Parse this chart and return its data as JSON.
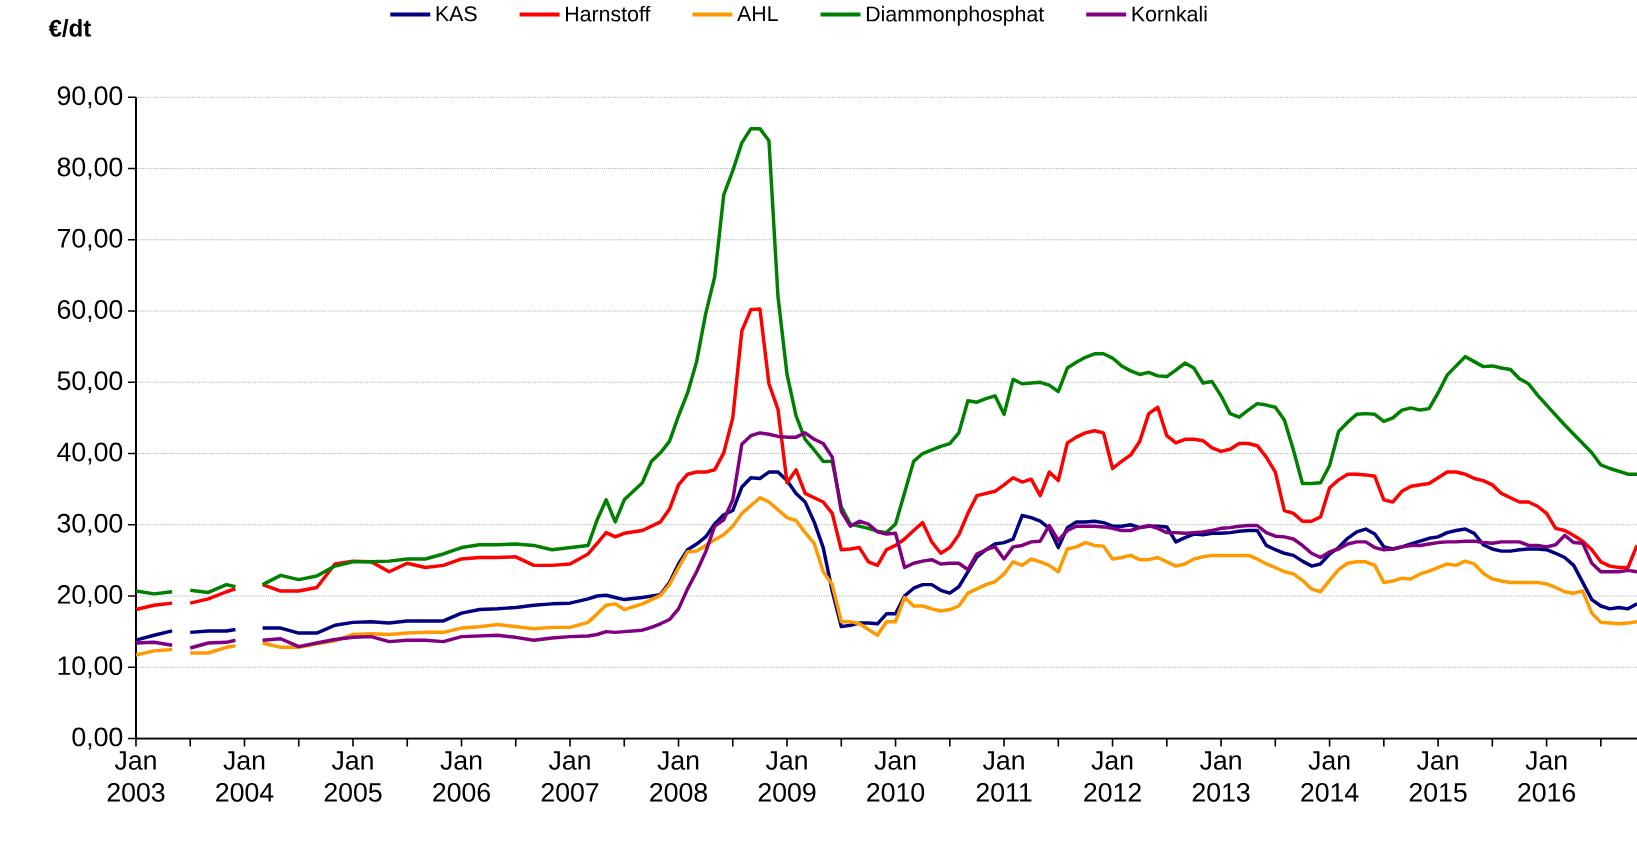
{
  "chart_data": {
    "type": "line",
    "ylabel": "€/dt",
    "x": [
      "2003-01",
      "2003-03",
      "2003-05",
      "2003-06",
      "2003-07",
      "2003-09",
      "2003-11",
      "2003-12",
      "2004-01",
      "2004-03",
      "2004-05",
      "2004-07",
      "2004-09",
      "2004-11",
      "2005-01",
      "2005-03",
      "2005-05",
      "2005-07",
      "2005-09",
      "2005-11",
      "2006-01",
      "2006-03",
      "2006-05",
      "2006-07",
      "2006-09",
      "2006-11",
      "2007-01",
      "2007-03",
      "2007-04",
      "2007-05",
      "2007-06",
      "2007-07",
      "2007-09",
      "2007-10",
      "2007-11",
      "2007-12",
      "2008-01",
      "2008-02",
      "2008-03",
      "2008-04",
      "2008-05",
      "2008-06",
      "2008-07",
      "2008-08",
      "2008-09",
      "2008-10",
      "2008-11",
      "2008-12",
      "2009-01",
      "2009-02",
      "2009-03",
      "2009-04",
      "2009-05",
      "2009-06",
      "2009-07",
      "2009-08",
      "2009-09",
      "2009-10",
      "2009-11",
      "2009-12",
      "2010-01",
      "2010-02",
      "2010-03",
      "2010-04",
      "2010-05",
      "2010-06",
      "2010-07",
      "2010-08",
      "2010-09",
      "2010-10",
      "2010-11",
      "2010-12",
      "2011-01",
      "2011-02",
      "2011-03",
      "2011-04",
      "2011-05",
      "2011-06",
      "2011-07",
      "2011-08",
      "2011-09",
      "2011-10",
      "2011-11",
      "2011-12",
      "2012-01",
      "2012-02",
      "2012-03",
      "2012-04",
      "2012-05",
      "2012-06",
      "2012-07",
      "2012-08",
      "2012-09",
      "2012-10",
      "2012-11",
      "2012-12",
      "2013-01",
      "2013-02",
      "2013-03",
      "2013-04",
      "2013-05",
      "2013-06",
      "2013-07",
      "2013-08",
      "2013-09",
      "2013-10",
      "2013-11",
      "2013-12",
      "2014-01",
      "2014-02",
      "2014-03",
      "2014-04",
      "2014-05",
      "2014-06",
      "2014-07",
      "2014-08",
      "2014-09",
      "2014-10",
      "2014-11",
      "2014-12",
      "2015-01",
      "2015-02",
      "2015-03",
      "2015-04",
      "2015-05",
      "2015-06",
      "2015-07",
      "2015-08",
      "2015-09",
      "2015-10",
      "2015-11",
      "2015-12",
      "2016-01",
      "2016-02",
      "2016-03",
      "2016-04",
      "2016-05",
      "2016-06",
      "2016-07",
      "2016-08",
      "2016-09",
      "2016-10",
      "2016-11"
    ],
    "series": [
      {
        "name": "KAS",
        "color": "#000080",
        "values": [
          13.8,
          14.5,
          15.1,
          null,
          14.9,
          15.1,
          15.1,
          15.3,
          null,
          15.5,
          15.5,
          14.8,
          14.8,
          15.9,
          16.3,
          16.4,
          16.2,
          16.5,
          16.5,
          16.5,
          17.6,
          18.1,
          18.2,
          18.4,
          18.7,
          18.9,
          19.0,
          19.6,
          20.0,
          20.1,
          19.8,
          19.5,
          19.8,
          20.0,
          20.2,
          21.9,
          24.5,
          26.5,
          27.3,
          28.3,
          30.1,
          31.4,
          32.0,
          35.3,
          36.6,
          36.5,
          37.4,
          37.4,
          36.2,
          34.4,
          33.2,
          30.4,
          26.8,
          20.7,
          15.7,
          15.9,
          16.2,
          16.2,
          16.1,
          17.5,
          17.5,
          20.0,
          21.1,
          21.6,
          21.6,
          20.8,
          20.4,
          21.3,
          23.4,
          25.5,
          26.5,
          27.3,
          27.5,
          28.0,
          31.3,
          31.0,
          30.5,
          29.5,
          26.8,
          29.6,
          30.4,
          30.4,
          30.5,
          30.3,
          29.8,
          29.8,
          30.0,
          29.6,
          29.8,
          29.8,
          29.7,
          27.6,
          28.2,
          28.7,
          28.6,
          28.8,
          28.8,
          28.9,
          29.1,
          29.2,
          29.2,
          27.1,
          26.5,
          26.0,
          25.7,
          24.9,
          24.2,
          24.5,
          25.9,
          26.8,
          28.1,
          29.0,
          29.4,
          28.7,
          26.9,
          26.6,
          26.9,
          27.3,
          27.7,
          28.1,
          28.3,
          28.9,
          29.2,
          29.4,
          28.8,
          27.2,
          26.6,
          26.3,
          26.3,
          26.5,
          26.6,
          26.6,
          26.5,
          26.0,
          25.4,
          24.3,
          21.9,
          19.5,
          18.6,
          18.2,
          18.4,
          18.2,
          18.9
        ]
      },
      {
        "name": "Harnstoff",
        "color": "#ff0000",
        "values": [
          18.1,
          18.7,
          19.0,
          null,
          19.0,
          19.6,
          20.6,
          21.0,
          null,
          21.6,
          20.7,
          20.7,
          21.2,
          24.5,
          24.9,
          24.8,
          23.4,
          24.6,
          24.0,
          24.3,
          25.2,
          25.4,
          25.4,
          25.5,
          24.3,
          24.3,
          24.5,
          25.9,
          27.4,
          28.9,
          28.3,
          28.8,
          29.2,
          29.8,
          30.4,
          32.2,
          35.6,
          37.1,
          37.4,
          37.4,
          37.7,
          40.1,
          45.0,
          57.2,
          60.2,
          60.3,
          49.8,
          46.2,
          35.9,
          37.7,
          34.4,
          33.8,
          33.2,
          31.6,
          26.5,
          26.6,
          26.8,
          24.8,
          24.3,
          26.5,
          27.1,
          28.0,
          29.2,
          30.3,
          27.6,
          26.0,
          26.8,
          28.6,
          31.6,
          34.1,
          34.4,
          34.7,
          35.6,
          36.6,
          36.0,
          36.4,
          34.1,
          37.4,
          36.2,
          41.5,
          42.3,
          42.9,
          43.2,
          42.9,
          37.9,
          38.9,
          39.8,
          41.7,
          45.6,
          46.5,
          42.5,
          41.5,
          42.0,
          42.0,
          41.8,
          40.8,
          40.3,
          40.6,
          41.4,
          41.4,
          41.1,
          39.5,
          37.4,
          32.0,
          31.6,
          30.5,
          30.5,
          31.1,
          35.2,
          36.3,
          37.1,
          37.1,
          37.0,
          36.8,
          33.5,
          33.2,
          34.7,
          35.4,
          35.6,
          35.8,
          36.6,
          37.4,
          37.4,
          37.1,
          36.5,
          36.2,
          35.6,
          34.4,
          33.8,
          33.2,
          33.2,
          32.6,
          31.6,
          29.5,
          29.2,
          28.5,
          27.7,
          26.5,
          24.8,
          24.2,
          24.0,
          24.0,
          27.1
        ]
      },
      {
        "name": "AHL",
        "color": "#ff9900",
        "values": [
          11.7,
          12.3,
          12.5,
          null,
          12.0,
          12.0,
          12.8,
          13.0,
          null,
          13.4,
          12.8,
          12.8,
          13.3,
          13.7,
          14.6,
          14.7,
          14.6,
          14.8,
          14.9,
          14.9,
          15.5,
          15.7,
          16.0,
          15.7,
          15.4,
          15.6,
          15.6,
          16.3,
          17.5,
          18.7,
          18.9,
          18.1,
          18.9,
          19.5,
          20.1,
          21.6,
          24.0,
          26.2,
          26.3,
          27.1,
          27.9,
          28.6,
          29.8,
          31.6,
          32.7,
          33.8,
          33.2,
          32.1,
          31.0,
          30.6,
          28.9,
          27.4,
          23.4,
          21.6,
          16.4,
          16.4,
          16.1,
          15.3,
          14.5,
          16.4,
          16.4,
          19.8,
          18.6,
          18.6,
          18.2,
          17.9,
          18.1,
          18.6,
          20.4,
          21.0,
          21.6,
          22.0,
          23.1,
          24.8,
          24.3,
          25.2,
          24.8,
          24.3,
          23.4,
          26.6,
          26.9,
          27.5,
          27.1,
          27.0,
          25.2,
          25.4,
          25.7,
          25.1,
          25.1,
          25.4,
          24.8,
          24.2,
          24.5,
          25.2,
          25.5,
          25.7,
          25.7,
          25.7,
          25.7,
          25.7,
          25.2,
          24.5,
          24.0,
          23.4,
          23.1,
          22.2,
          21.0,
          20.6,
          22.2,
          23.7,
          24.6,
          24.8,
          24.8,
          24.3,
          21.9,
          22.1,
          22.5,
          22.4,
          23.1,
          23.5,
          24.0,
          24.5,
          24.3,
          24.9,
          24.5,
          23.2,
          22.4,
          22.1,
          21.9,
          21.9,
          21.9,
          21.9,
          21.7,
          21.2,
          20.6,
          20.4,
          20.7,
          17.6,
          16.3,
          16.2,
          16.1,
          16.2,
          16.4
        ]
      },
      {
        "name": "Diammonphosphat",
        "color": "#008000",
        "values": [
          20.7,
          20.3,
          20.6,
          null,
          20.8,
          20.5,
          21.6,
          21.3,
          null,
          21.6,
          22.9,
          22.3,
          22.8,
          24.2,
          24.8,
          24.8,
          24.9,
          25.2,
          25.2,
          25.9,
          26.8,
          27.2,
          27.2,
          27.3,
          27.1,
          26.5,
          26.8,
          27.1,
          30.7,
          33.5,
          30.4,
          33.5,
          35.9,
          38.9,
          40.1,
          41.7,
          45.3,
          48.5,
          52.9,
          59.6,
          64.8,
          76.3,
          79.7,
          83.6,
          85.6,
          85.6,
          83.9,
          62.0,
          51.1,
          45.3,
          42.0,
          40.5,
          38.9,
          38.9,
          32.5,
          30.1,
          29.8,
          29.5,
          29.1,
          28.9,
          30.1,
          34.5,
          38.9,
          40.0,
          40.5,
          41.0,
          41.4,
          42.9,
          47.4,
          47.2,
          47.7,
          48.1,
          45.5,
          50.4,
          49.8,
          49.9,
          50.0,
          49.6,
          48.7,
          52.0,
          52.8,
          53.5,
          54.0,
          54.0,
          53.4,
          52.3,
          51.6,
          51.1,
          51.4,
          50.9,
          50.8,
          51.7,
          52.7,
          52.0,
          49.9,
          50.1,
          48.1,
          45.6,
          45.1,
          46.1,
          47.0,
          46.8,
          46.5,
          44.7,
          40.5,
          35.8,
          35.8,
          35.9,
          38.3,
          43.1,
          44.4,
          45.5,
          45.6,
          45.5,
          44.5,
          45.0,
          46.1,
          46.4,
          46.1,
          46.3,
          48.5,
          51.0,
          52.3,
          53.6,
          52.9,
          52.2,
          52.3,
          52.0,
          51.8,
          50.5,
          49.8,
          48.2,
          46.8,
          45.4,
          44.0,
          42.7,
          41.4,
          40.1,
          38.4,
          37.9,
          37.5,
          37.1,
          37.1
        ]
      },
      {
        "name": "Kornkali",
        "color": "#800080",
        "values": [
          13.4,
          13.5,
          13.1,
          null,
          12.7,
          13.4,
          13.5,
          13.8,
          null,
          13.8,
          14.0,
          12.9,
          13.4,
          13.9,
          14.2,
          14.3,
          13.6,
          13.8,
          13.8,
          13.6,
          14.3,
          14.4,
          14.5,
          14.2,
          13.8,
          14.1,
          14.3,
          14.4,
          14.6,
          15.0,
          14.9,
          15.0,
          15.2,
          15.6,
          16.1,
          16.7,
          18.2,
          21.0,
          23.4,
          26.2,
          29.8,
          30.7,
          33.5,
          41.3,
          42.5,
          42.9,
          42.7,
          42.4,
          42.3,
          42.3,
          42.9,
          42.0,
          41.4,
          39.5,
          31.9,
          29.8,
          30.5,
          30.1,
          29.0,
          28.7,
          28.8,
          24.0,
          24.6,
          24.9,
          25.1,
          24.5,
          24.6,
          24.6,
          23.7,
          25.9,
          26.5,
          26.9,
          25.2,
          26.9,
          27.1,
          27.6,
          27.7,
          29.9,
          27.8,
          29.2,
          29.8,
          29.8,
          29.8,
          29.7,
          29.5,
          29.2,
          29.2,
          29.6,
          29.9,
          29.5,
          28.9,
          28.9,
          28.8,
          28.9,
          29.0,
          29.2,
          29.5,
          29.6,
          29.8,
          29.9,
          29.9,
          28.9,
          28.4,
          28.3,
          28.0,
          27.1,
          26.0,
          25.4,
          26.2,
          26.6,
          27.3,
          27.6,
          27.6,
          26.8,
          26.5,
          26.6,
          26.9,
          27.1,
          27.1,
          27.3,
          27.5,
          27.6,
          27.6,
          27.7,
          27.7,
          27.5,
          27.4,
          27.6,
          27.6,
          27.6,
          27.1,
          27.1,
          26.9,
          27.2,
          28.5,
          27.5,
          27.4,
          24.6,
          23.4,
          23.4,
          23.4,
          23.6,
          23.4
        ]
      }
    ],
    "xlim": [
      "2003-01",
      "2016-11"
    ],
    "xticks": [
      {
        "value": "2003-01",
        "label": "Jan 2003"
      },
      {
        "value": "2003-07",
        "label": null
      },
      {
        "value": "2004-01",
        "label": "Jan 2004"
      },
      {
        "value": "2004-07",
        "label": null
      },
      {
        "value": "2005-01",
        "label": "Jan 2005"
      },
      {
        "value": "2005-07",
        "label": null
      },
      {
        "value": "2006-01",
        "label": "Jan 2006"
      },
      {
        "value": "2006-07",
        "label": null
      },
      {
        "value": "2007-01",
        "label": "Jan 2007"
      },
      {
        "value": "2007-07",
        "label": null
      },
      {
        "value": "2008-01",
        "label": "Jan 2008"
      },
      {
        "value": "2008-07",
        "label": null
      },
      {
        "value": "2009-01",
        "label": "Jan 2009"
      },
      {
        "value": "2009-07",
        "label": null
      },
      {
        "value": "2010-01",
        "label": "Jan 2010"
      },
      {
        "value": "2010-07",
        "label": null
      },
      {
        "value": "2011-01",
        "label": "Jan 2011"
      },
      {
        "value": "2011-07",
        "label": null
      },
      {
        "value": "2012-01",
        "label": "Jan 2012"
      },
      {
        "value": "2012-07",
        "label": null
      },
      {
        "value": "2013-01",
        "label": "Jan 2013"
      },
      {
        "value": "2013-07",
        "label": null
      },
      {
        "value": "2014-01",
        "label": "Jan 2014"
      },
      {
        "value": "2014-07",
        "label": null
      },
      {
        "value": "2015-01",
        "label": "Jan 2015"
      },
      {
        "value": "2015-07",
        "label": null
      },
      {
        "value": "2016-01",
        "label": "Jan 2016"
      },
      {
        "value": "2016-07",
        "label": null
      }
    ],
    "ylim": [
      0,
      90
    ],
    "yticks": [
      {
        "value": 0,
        "label": "0,00"
      },
      {
        "value": 10,
        "label": "10,00"
      },
      {
        "value": 20,
        "label": "20,00"
      },
      {
        "value": 30,
        "label": "30,00"
      },
      {
        "value": 40,
        "label": "40,00"
      },
      {
        "value": 50,
        "label": "50,00"
      },
      {
        "value": 60,
        "label": "60,00"
      },
      {
        "value": 70,
        "label": "70,00"
      },
      {
        "value": 80,
        "label": "80,00"
      },
      {
        "value": 90,
        "label": "90,00"
      }
    ],
    "grid": "y",
    "legend": "top",
    "marker": "none",
    "line_style": "solid"
  }
}
